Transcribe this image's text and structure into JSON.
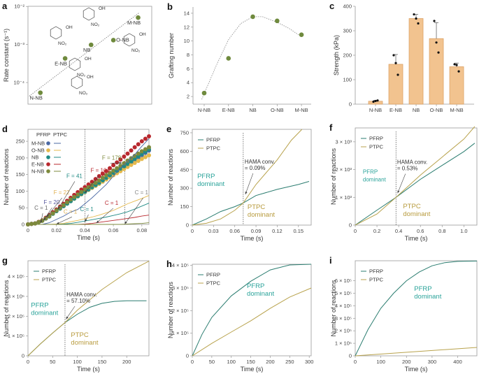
{
  "colors": {
    "pfrp": "#2b7d70",
    "ptpc": "#b8a24c",
    "pfrp_text": "#2aa39a",
    "ptpc_text": "#b89b3e",
    "green_dot": "#6f8a3d",
    "bar": "#f2c38f",
    "bar_edge": "#d99c5c"
  },
  "structure_labels": {
    "oh": "OH",
    "no2": "NO₂"
  },
  "chart_data": [
    {
      "panel_label": "a",
      "type": "scatter",
      "ylog": true,
      "ylabel": "Rate constant (s⁻¹)",
      "xlabel": "",
      "xlim": [
        0,
        10
      ],
      "ylim": [
        2.7e-05,
        0.0101
      ],
      "yticks": [
        0.0001,
        0.001,
        0.01
      ],
      "ytick_labels": [
        "10⁻⁴",
        "10⁻³",
        "10⁻²"
      ],
      "xticks": [],
      "xtick_labels": [],
      "points": [
        {
          "label": "N-NB",
          "x": 1.0,
          "y": 5.4e-05
        },
        {
          "label": "E-NB",
          "x": 3.0,
          "y": 0.00043
        },
        {
          "label": "NB",
          "x": 5.1,
          "y": 0.00098
        },
        {
          "label": "O-NB",
          "x": 6.9,
          "y": 0.0013
        },
        {
          "label": "M-NB",
          "x": 8.9,
          "y": 0.0051
        }
      ],
      "trendline": {
        "x": [
          0.1,
          9.0
        ],
        "y": [
          4.4e-05,
          0.0069
        ]
      }
    },
    {
      "panel_label": "b",
      "type": "scatter",
      "ylabel": "Grafting number",
      "xlabel": "",
      "categories": [
        "N-NB",
        "E-NB",
        "NB",
        "O-NB",
        "M-NB"
      ],
      "values": [
        2.5,
        7.5,
        13.5,
        12.9,
        10.9
      ],
      "xlim": [
        -0.46,
        4.4
      ],
      "ylim": [
        0.9,
        14.9
      ],
      "yticks": [
        2,
        4,
        6,
        8,
        10,
        12,
        14
      ],
      "ytick_labels": [
        "2",
        "4",
        "6",
        "8",
        "10",
        "12",
        "14"
      ],
      "fit": {
        "x": [
          -0.1,
          0.5,
          1,
          1.5,
          2,
          2.4,
          3,
          3.5,
          4
        ],
        "y": [
          1.6,
          6.5,
          10.2,
          12.5,
          13.5,
          13.5,
          12.7,
          11.8,
          10.6
        ]
      }
    },
    {
      "panel_label": "c",
      "type": "bar",
      "ylabel": "Strength (kPa)",
      "xlabel": "",
      "categories": [
        "N-NB",
        "E-NB",
        "NB",
        "O-NB",
        "M-NB"
      ],
      "values": [
        12,
        163,
        350,
        268,
        153
      ],
      "error_plus": [
        4,
        40,
        17,
        65,
        15
      ],
      "replicates": [
        [
          10,
          13,
          15
        ],
        [
          200,
          168,
          120
        ],
        [
          367,
          350,
          330
        ],
        [
          340,
          252,
          211
        ],
        [
          163,
          160,
          134
        ]
      ],
      "xlim": [
        -1,
        4.86
      ],
      "ylim": [
        0,
        400
      ],
      "yticks": [
        0,
        100,
        200,
        300,
        400
      ],
      "ytick_labels": [
        "0",
        "100",
        "200",
        "300",
        "400"
      ]
    },
    {
      "panel_label": "d",
      "type": "line",
      "xlabel": "Time (s)",
      "ylabel": "Number of reactions",
      "xlim": [
        0,
        0.085
      ],
      "ylim": [
        0,
        286
      ],
      "xticks": [
        0,
        0.02,
        0.04,
        0.06,
        0.08
      ],
      "xtick_labels": [
        "0",
        "0.02",
        "0.04",
        "0.06",
        "0.08"
      ],
      "yticks": [
        0,
        50,
        100,
        150,
        200,
        250
      ],
      "ytick_labels": [
        "0",
        "50",
        "100",
        "150",
        "200",
        "250"
      ],
      "legend_header": [
        "PFRP",
        "PTPC"
      ],
      "x": [
        0,
        0.005,
        0.01,
        0.015,
        0.02,
        0.025,
        0.03,
        0.035,
        0.04,
        0.045,
        0.05,
        0.055,
        0.06,
        0.065,
        0.07,
        0.075,
        0.08,
        0.085
      ],
      "series": [
        {
          "name": "M-NB",
          "color": "#4a68a3",
          "pfrp": [
            0,
            3,
            11,
            24,
            40,
            55,
            70,
            85,
            98,
            110,
            124,
            138,
            152,
            166,
            180,
            194,
            208,
            222
          ],
          "ptpc": [
            0,
            0,
            0,
            5,
            15,
            25,
            37,
            45,
            62,
            80,
            100,
            120,
            145,
            170,
            190,
            210,
            235,
            258
          ]
        },
        {
          "name": "O-NB",
          "color": "#e5b94c",
          "pfrp": [
            0,
            3,
            11,
            24,
            40,
            55,
            70,
            84,
            97,
            110,
            122,
            135,
            148,
            160,
            173,
            185,
            197,
            208
          ],
          "ptpc": [
            0,
            0,
            0,
            0,
            1,
            3,
            8,
            12,
            17,
            22,
            28,
            35,
            42,
            52,
            62,
            70,
            78,
            87
          ]
        },
        {
          "name": "NB",
          "color": "#1f8a84",
          "pfrp": [
            0,
            3,
            11,
            24,
            40,
            55,
            70,
            85,
            98,
            112,
            125,
            140,
            155,
            168,
            182,
            197,
            212,
            226
          ],
          "ptpc": [
            0,
            0,
            0,
            0,
            0,
            1,
            3,
            6,
            10,
            14,
            18,
            22,
            27,
            32,
            38,
            46,
            55,
            64
          ]
        },
        {
          "name": "E-NB",
          "color": "#b8282e",
          "pfrp": [
            0,
            3,
            12,
            28,
            45,
            62,
            80,
            97,
            112,
            128,
            145,
            160,
            178,
            195,
            213,
            232,
            250,
            265
          ],
          "ptpc": [
            0,
            0,
            0,
            0,
            0,
            0,
            0,
            0,
            1,
            3,
            6,
            9,
            12,
            15,
            18,
            21,
            25,
            28
          ]
        },
        {
          "name": "N-NB",
          "color": "#7d8a3c",
          "pfrp": [
            0,
            3,
            11,
            25,
            42,
            58,
            75,
            90,
            105,
            118,
            132,
            148,
            162,
            176,
            192,
            206,
            220,
            232
          ],
          "ptpc": [
            0,
            0,
            0,
            0,
            0,
            0,
            0,
            0,
            0,
            0,
            0,
            0,
            0,
            0,
            1,
            2,
            3,
            5
          ]
        }
      ],
      "vlines": [
        0.04,
        0.068
      ],
      "annotations": [
        {
          "lines": [
            "C = 1"
          ],
          "x": 0.0045,
          "y": 44,
          "color": "#666",
          "arrow": [
            0.009,
            4
          ]
        },
        {
          "lines": [
            "F = 20"
          ],
          "x": 0.011,
          "y": 61,
          "color": "#5a5aa0",
          "arrow": [
            0.011,
            12
          ]
        },
        {
          "lines": [
            "F = 22"
          ],
          "x": 0.018,
          "y": 90,
          "color": "#e0b050",
          "arrow": [
            0.013,
            22
          ]
        },
        {
          "lines": [
            "F = 41"
          ],
          "x": 0.027,
          "y": 140,
          "color": "#1f8a84",
          "arrow": [
            0.021,
            45
          ]
        },
        {
          "lines": [
            "C = 1"
          ],
          "x": 0.025,
          "y": 33,
          "color": "#e0b050",
          "arrow": [
            0.02,
            1
          ]
        },
        {
          "lines": [
            "C = 1"
          ],
          "x": 0.0366,
          "y": 40,
          "color": "#1f8a84",
          "arrow": [
            0.04,
            8
          ]
        },
        {
          "lines": [
            "F = 104"
          ],
          "x": 0.044,
          "y": 157,
          "color": "#b8282e",
          "arrow": [
            0.04,
            95
          ]
        },
        {
          "lines": [
            "C = 1"
          ],
          "x": 0.054,
          "y": 59,
          "color": "#b8282e",
          "arrow": [
            0.048,
            4
          ]
        },
        {
          "lines": [
            "F = 178"
          ],
          "x": 0.052,
          "y": 195,
          "color": "#7d8a3c",
          "arrow": [
            0.066,
            185
          ]
        },
        {
          "lines": [
            "C = 1"
          ],
          "x": 0.075,
          "y": 90,
          "color": "#888",
          "arrow": [
            0.068,
            1
          ]
        }
      ]
    },
    {
      "panel_label": "e",
      "type": "line",
      "xlabel": "Time (s)",
      "ylabel": "Number of reactions",
      "xlim": [
        0,
        0.168
      ],
      "ylim": [
        0,
        778
      ],
      "xticks": [
        0,
        0.03,
        0.06,
        0.09,
        0.12,
        0.15
      ],
      "xtick_labels": [
        "0",
        "0.03",
        "0.06",
        "0.09",
        "0.12",
        "0.15"
      ],
      "yticks": [
        0,
        150,
        300,
        450,
        600,
        750
      ],
      "ytick_labels": [
        "0",
        "150",
        "300",
        "450",
        "600",
        "750"
      ],
      "series": [
        {
          "name": "PFRP",
          "x": [
            0,
            0.02,
            0.04,
            0.06,
            0.072,
            0.09,
            0.12,
            0.15,
            0.165
          ],
          "y": [
            0,
            50,
            110,
            150,
            180,
            240,
            290,
            330,
            355
          ]
        },
        {
          "name": "PTPC",
          "x": [
            0,
            0.02,
            0.04,
            0.06,
            0.072,
            0.09,
            0.12,
            0.14,
            0.155
          ],
          "y": [
            0,
            15,
            50,
            120,
            180,
            330,
            530,
            690,
            778
          ]
        }
      ],
      "vlines": [
        0.072
      ],
      "annotations": [
        {
          "lines": [
            "HAMA conv.",
            "= 0.09%"
          ],
          "x": 0.074,
          "y": 500,
          "color": "#333",
          "arrow": [
            0.075,
            250
          ]
        },
        {
          "lines": [
            "PFRP",
            "dominant"
          ],
          "x": 0.007,
          "y": 380,
          "color": "pfrp",
          "big": true
        },
        {
          "lines": [
            "PTPC",
            "dominant"
          ],
          "x": 0.078,
          "y": 130,
          "color": "ptpc",
          "big": true
        }
      ]
    },
    {
      "panel_label": "f",
      "type": "line",
      "xlabel": "Time (s)",
      "ylabel": "Number of reactions",
      "xlim": [
        0,
        1.12
      ],
      "ylim": [
        0,
        3500
      ],
      "xticks": [
        0,
        0.2,
        0.4,
        0.6,
        0.8,
        1.0
      ],
      "xtick_labels": [
        "0",
        "0.2",
        "0.4",
        "0.6",
        "0.8",
        "1.0"
      ],
      "yticks": [
        0,
        1000,
        2000,
        3000
      ],
      "ytick_labels": [
        "0",
        "1 × 10³",
        "2 × 10³",
        "3 × 10³"
      ],
      "series": [
        {
          "name": "PFRP",
          "x": [
            0,
            0.2,
            0.375,
            0.6,
            0.8,
            1.0,
            1.1
          ],
          "y": [
            0,
            540,
            1000,
            1650,
            2150,
            2650,
            2950
          ]
        },
        {
          "name": "PTPC",
          "x": [
            0,
            0.2,
            0.375,
            0.6,
            0.8,
            1.0,
            1.1
          ],
          "y": [
            0,
            400,
            1000,
            1800,
            2450,
            3100,
            3550
          ]
        }
      ],
      "vlines": [
        0.375
      ],
      "annotations": [
        {
          "lines": [
            "HAMA conv.",
            "= 0.53%"
          ],
          "x": 0.385,
          "y": 2200,
          "color": "#333",
          "arrow": [
            0.39,
            1150
          ]
        },
        {
          "lines": [
            "PFRP",
            "dominant"
          ],
          "x": 0.07,
          "y": 1850,
          "color": "pfrp",
          "big": false
        },
        {
          "lines": [
            "PTPC",
            "dominant"
          ],
          "x": 0.44,
          "y": 600,
          "color": "ptpc",
          "big": true
        }
      ]
    },
    {
      "panel_label": "g",
      "type": "line",
      "xlabel": "Time (s)",
      "ylabel": "Number of reactions",
      "xlim": [
        0,
        245
      ],
      "ylim": [
        0,
        480000
      ],
      "xticks": [
        0,
        50,
        100,
        150,
        200
      ],
      "xtick_labels": [
        "0",
        "50",
        "100",
        "150",
        "200"
      ],
      "yticks": [
        0,
        100000,
        200000,
        300000,
        400000
      ],
      "ytick_labels": [
        "0",
        "1 × 10⁵",
        "2 × 10⁵",
        "3 × 10⁵",
        "4 × 10⁵"
      ],
      "series": [
        {
          "name": "PFRP",
          "x": [
            0,
            25,
            50,
            75,
            100,
            125,
            150,
            175,
            200,
            240
          ],
          "y": [
            0,
            60000,
            115000,
            168000,
            210000,
            245000,
            265000,
            275000,
            278000,
            278000
          ]
        },
        {
          "name": "PTPC",
          "x": [
            0,
            25,
            50,
            75,
            100,
            150,
            200,
            245
          ],
          "y": [
            0,
            60000,
            115000,
            168000,
            230000,
            335000,
            420000,
            478000
          ]
        }
      ],
      "vlines": [
        75
      ],
      "annotations": [
        {
          "lines": [
            "HAMA conv.",
            "= 57.10%"
          ],
          "x": 78,
          "y": 300000,
          "color": "#333",
          "arrow": [
            77,
            185000
          ]
        },
        {
          "lines": [
            "PFRP",
            "dominant"
          ],
          "x": 6,
          "y": 245000,
          "color": "pfrp",
          "big": true
        },
        {
          "lines": [
            "PTPC",
            "dominant"
          ],
          "x": 87,
          "y": 95000,
          "color": "ptpc",
          "big": true
        }
      ]
    },
    {
      "panel_label": "h",
      "type": "line",
      "xlabel": "Time (s)",
      "ylabel": "Number of reactions",
      "xlim": [
        0,
        305
      ],
      "ylim": [
        0,
        405000
      ],
      "xticks": [
        0,
        50,
        100,
        150,
        200,
        250,
        300
      ],
      "xtick_labels": [
        "0",
        "50",
        "100",
        "150",
        "200",
        "250",
        "300"
      ],
      "yticks": [
        0,
        100000,
        200000,
        300000,
        400000
      ],
      "ytick_labels": [
        "0",
        "1 × 10⁵",
        "2 × 10⁵",
        "3 × 10⁵",
        "4 × 10⁵"
      ],
      "series": [
        {
          "name": "PFRP",
          "x": [
            0,
            25,
            50,
            100,
            150,
            200,
            250,
            305
          ],
          "y": [
            0,
            95000,
            170000,
            265000,
            330000,
            380000,
            402000,
            405000
          ]
        },
        {
          "name": "PTPC",
          "x": [
            0,
            50,
            100,
            150,
            200,
            250,
            305
          ],
          "y": [
            0,
            55000,
            105000,
            155000,
            210000,
            260000,
            300000
          ]
        }
      ],
      "vlines": [],
      "annotations": [
        {
          "lines": [
            "PFRP",
            "dominant"
          ],
          "x": 140,
          "y": 300000,
          "color": "pfrp",
          "big": true
        }
      ]
    },
    {
      "panel_label": "i",
      "type": "line",
      "xlabel": "Time (s)",
      "ylabel": "Number of reactions",
      "xlim": [
        0,
        475
      ],
      "ylim": [
        0,
        760000
      ],
      "xticks": [
        0,
        100,
        200,
        300,
        400
      ],
      "xtick_labels": [
        "0",
        "100",
        "200",
        "300",
        "400"
      ],
      "yticks": [
        0,
        100000,
        200000,
        300000,
        400000,
        500000,
        600000
      ],
      "ytick_labels": [
        "0",
        "1 × 10⁵",
        "2 × 10⁵",
        "3 × 10⁵",
        "4 × 10⁵",
        "5 × 10⁵",
        "6 × 10⁵"
      ],
      "series": [
        {
          "name": "PFRP",
          "x": [
            0,
            50,
            100,
            150,
            200,
            250,
            300,
            350,
            400,
            475
          ],
          "y": [
            0,
            210000,
            380000,
            500000,
            600000,
            670000,
            720000,
            745000,
            755000,
            758000
          ]
        },
        {
          "name": "PTPC",
          "x": [
            0,
            475
          ],
          "y": [
            0,
            67000
          ]
        }
      ],
      "vlines": [],
      "annotations": [
        {
          "lines": [
            "PFRP",
            "dominant"
          ],
          "x": 230,
          "y": 520000,
          "color": "pfrp",
          "big": true
        }
      ]
    }
  ]
}
